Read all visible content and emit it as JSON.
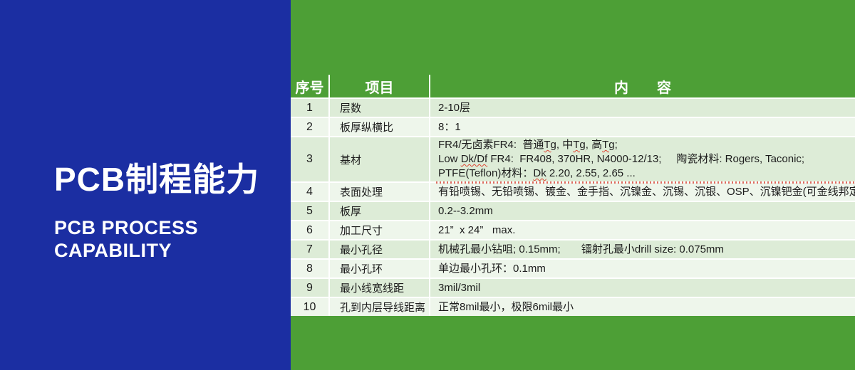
{
  "left_panel": {
    "title": "PCB制程能力",
    "subtitle_line1": "PCB PROCESS",
    "subtitle_line2": "CAPABILITY"
  },
  "colors": {
    "panel_blue": "#1b2ea2",
    "page_green": "#4d9f36",
    "row_shade_dark": "#ddecd7",
    "row_shade_light": "#eef6eb",
    "header_text": "#ffffff",
    "body_text": "#1c1c1c",
    "spellcheck_red": "#df4432"
  },
  "table": {
    "headers": {
      "no": "序号",
      "item": "项目",
      "content": "内　　容"
    },
    "rows": [
      {
        "no": "1",
        "item": "层数",
        "content": [
          [
            {
              "t": "2-10层"
            }
          ]
        ]
      },
      {
        "no": "2",
        "item": "板厚纵横比",
        "content": [
          [
            {
              "t": "8：1"
            }
          ]
        ]
      },
      {
        "no": "3",
        "item": "基材",
        "content": [
          [
            {
              "t": "FR4/无卤素FR4:  普通"
            },
            {
              "t": "Tg",
              "sq": true
            },
            {
              "t": ", 中"
            },
            {
              "t": "Tg",
              "sq": true
            },
            {
              "t": ", 高"
            },
            {
              "t": "Tg",
              "sq": true
            },
            {
              "t": ";"
            }
          ],
          [
            {
              "t": "Low "
            },
            {
              "t": "Dk/Df",
              "sq": true
            },
            {
              "t": " FR4:  FR408, 370HR, N4000-12/13;     陶瓷材料: Rogers, Taconic;"
            }
          ],
          [
            {
              "t": "PTFE(Teflon)材料："
            },
            {
              "t": "Dk",
              "sq": true
            },
            {
              "t": " 2.20, 2.55, 2.65 ..."
            }
          ]
        ],
        "spellcheck_artifact": true
      },
      {
        "no": "4",
        "item": "表面处理",
        "content": [
          [
            {
              "t": "有铅喷锡、无铅喷锡、镀金、金手指、沉镍金、沉锡、沉银、OSP、沉镍钯金(可金线邦定)"
            }
          ]
        ]
      },
      {
        "no": "5",
        "item": "板厚",
        "content": [
          [
            {
              "t": "0.2--3.2mm"
            }
          ]
        ]
      },
      {
        "no": "6",
        "item": "加工尺寸",
        "content": [
          [
            {
              "t": "21”  x 24”   max."
            }
          ]
        ]
      },
      {
        "no": "7",
        "item": "最小孔径",
        "content": [
          [
            {
              "t": "机械孔最小钻咀; 0.15mm;       镭射孔最小drill size: 0.075mm"
            }
          ]
        ]
      },
      {
        "no": "8",
        "item": "最小孔环",
        "content": [
          [
            {
              "t": "单边最小孔环：0.1mm"
            }
          ]
        ]
      },
      {
        "no": "9",
        "item": "最小线宽线距",
        "content": [
          [
            {
              "t": "3mil/3mil"
            }
          ]
        ]
      },
      {
        "no": "10",
        "item": "孔到内层导线距离",
        "content": [
          [
            {
              "t": "正常8mil最小，极限6mil最小"
            }
          ]
        ]
      }
    ]
  }
}
